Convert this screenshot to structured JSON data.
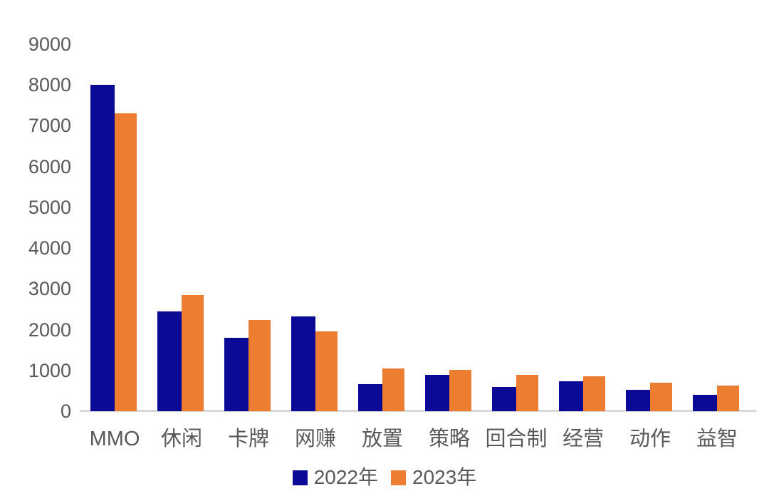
{
  "chart_data": {
    "type": "bar",
    "title": "",
    "xlabel": "",
    "ylabel": "",
    "categories": [
      "MMO",
      "休闲",
      "卡牌",
      "网赚",
      "放置",
      "策略",
      "回合制",
      "经营",
      "动作",
      "益智"
    ],
    "series": [
      {
        "name": "2022年",
        "color": "#0A0A97",
        "values": [
          8000,
          2450,
          1800,
          2320,
          660,
          890,
          600,
          730,
          520,
          410
        ]
      },
      {
        "name": "2023年",
        "color": "#ED7D31",
        "values": [
          7300,
          2840,
          2230,
          1950,
          1040,
          1010,
          900,
          860,
          700,
          630
        ]
      }
    ],
    "ylim": [
      0,
      9000
    ],
    "yticks": [
      0,
      1000,
      2000,
      3000,
      4000,
      5000,
      6000,
      7000,
      8000,
      9000
    ],
    "grid": false,
    "legend_position": "bottom",
    "axis_text_color": "#595959",
    "baseline_color": "#D9D9D9"
  }
}
